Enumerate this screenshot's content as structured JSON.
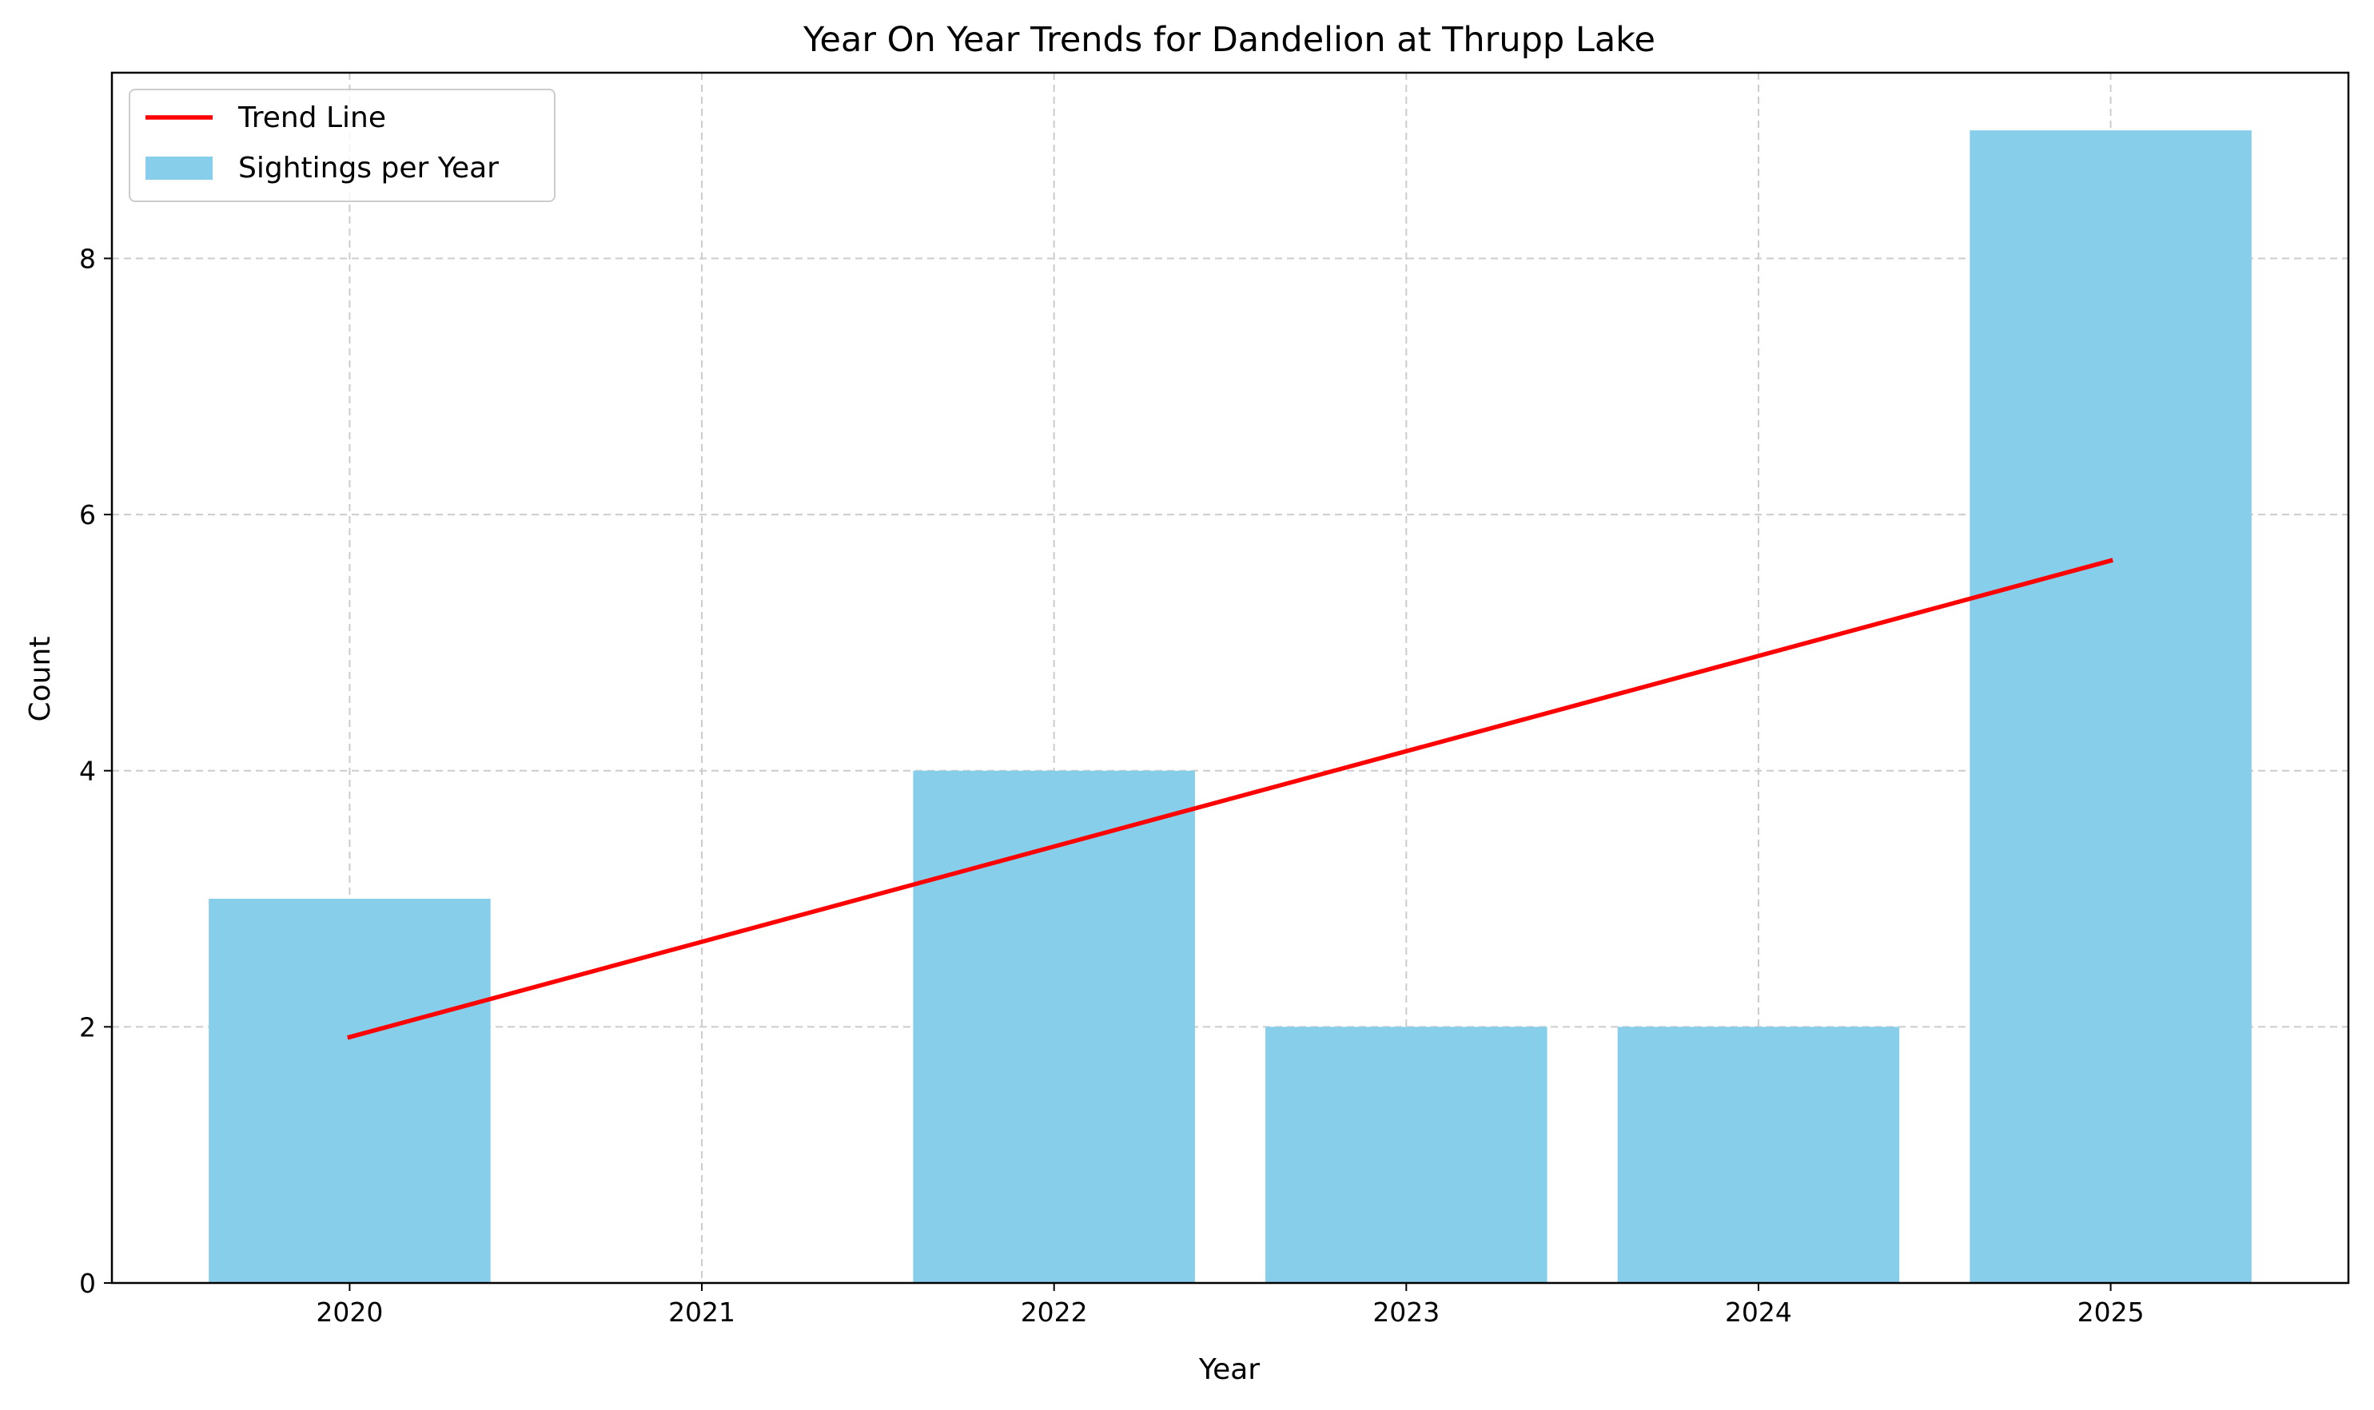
{
  "chart_data": {
    "type": "bar",
    "title": "Year On Year Trends for Dandelion at Thrupp Lake",
    "xlabel": "Year",
    "ylabel": "Count",
    "categories": [
      "2020",
      "2021",
      "2022",
      "2023",
      "2024",
      "2025"
    ],
    "series": [
      {
        "name": "Sightings per Year",
        "type": "bar",
        "values": [
          3,
          0,
          4,
          2,
          2,
          9
        ],
        "color": "#87CEEB"
      },
      {
        "name": "Trend Line",
        "type": "line",
        "x": [
          "2020",
          "2025"
        ],
        "values": [
          1.92,
          5.64
        ],
        "color": "#FF0000"
      }
    ],
    "ylim": [
      0,
      9.45
    ],
    "yticks": [
      0,
      2,
      4,
      6,
      8
    ],
    "grid": true,
    "legend_position": "top-left"
  }
}
